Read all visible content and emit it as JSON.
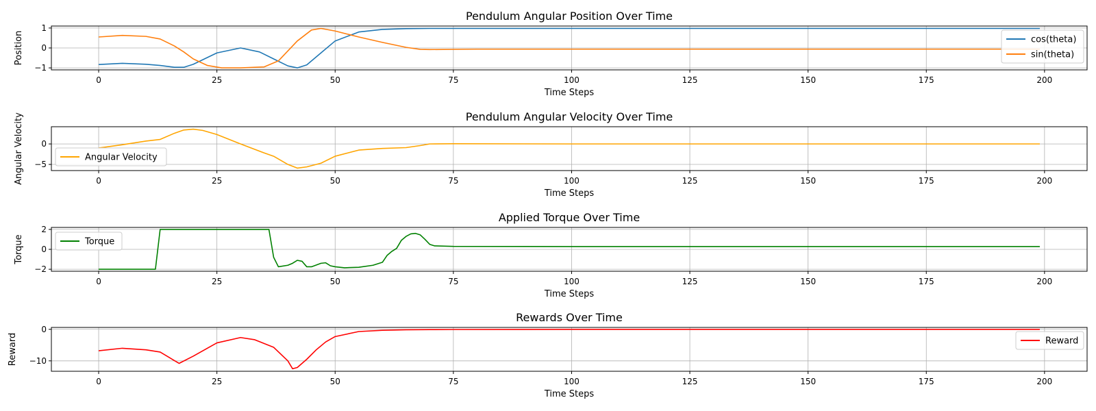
{
  "chart_data": [
    {
      "type": "line",
      "title": "Pendulum Angular Position Over Time",
      "xlabel": "Time Steps",
      "ylabel": "Position",
      "xlim": [
        -10,
        209
      ],
      "ylim": [
        -1.1,
        1.1
      ],
      "xticks": [
        0,
        25,
        50,
        75,
        100,
        125,
        150,
        175,
        200
      ],
      "yticks": [
        -1,
        0,
        1
      ],
      "grid": true,
      "legend_position": "right",
      "series": [
        {
          "name": "cos(theta)",
          "color": "#1f77b4",
          "x": [
            0,
            5,
            10,
            13,
            16,
            18,
            20,
            25,
            30,
            34,
            37,
            40,
            42,
            44,
            47,
            50,
            55,
            60,
            65,
            70,
            80,
            100,
            150,
            199
          ],
          "y": [
            -0.83,
            -0.77,
            -0.82,
            -0.88,
            -0.97,
            -0.97,
            -0.82,
            -0.25,
            0.0,
            -0.2,
            -0.55,
            -0.9,
            -1.0,
            -0.85,
            -0.25,
            0.35,
            0.8,
            0.93,
            0.97,
            0.98,
            0.98,
            0.98,
            0.98,
            0.98
          ]
        },
        {
          "name": "sin(theta)",
          "color": "#ff7f0e",
          "x": [
            0,
            5,
            10,
            13,
            16,
            18,
            20,
            23,
            26,
            30,
            35,
            38,
            42,
            45,
            47,
            50,
            55,
            60,
            65,
            68,
            70,
            80,
            100,
            150,
            199
          ],
          "y": [
            0.55,
            0.63,
            0.58,
            0.45,
            0.1,
            -0.2,
            -0.55,
            -0.88,
            -1.0,
            -1.0,
            -0.95,
            -0.65,
            0.35,
            0.9,
            0.98,
            0.85,
            0.55,
            0.28,
            0.03,
            -0.07,
            -0.08,
            -0.06,
            -0.06,
            -0.06,
            -0.06
          ]
        }
      ]
    },
    {
      "type": "line",
      "title": "Pendulum Angular Velocity Over Time",
      "xlabel": "Time Steps",
      "ylabel": "Angular Velocity",
      "xlim": [
        -10,
        209
      ],
      "ylim": [
        -6.5,
        4.2
      ],
      "xticks": [
        0,
        25,
        50,
        75,
        100,
        125,
        150,
        175,
        200
      ],
      "yticks": [
        -5,
        0
      ],
      "grid": true,
      "legend_position": "lower-left",
      "series": [
        {
          "name": "Angular Velocity",
          "color": "#ffa500",
          "x": [
            0,
            5,
            10,
            13,
            16,
            18,
            20,
            22,
            25,
            30,
            35,
            37,
            40,
            42,
            44,
            47,
            50,
            55,
            60,
            65,
            68,
            70,
            75,
            100,
            150,
            199
          ],
          "y": [
            -1.0,
            -0.2,
            0.7,
            1.1,
            2.6,
            3.4,
            3.6,
            3.3,
            2.3,
            0.0,
            -2.2,
            -3.0,
            -5.0,
            -5.9,
            -5.6,
            -4.7,
            -3.0,
            -1.5,
            -1.1,
            -0.9,
            -0.4,
            0.0,
            0.05,
            0.0,
            0.0,
            0.0
          ]
        }
      ]
    },
    {
      "type": "line",
      "title": "Applied Torque Over Time",
      "xlabel": "Time Steps",
      "ylabel": "Torque",
      "xlim": [
        -10,
        209
      ],
      "ylim": [
        -2.2,
        2.2
      ],
      "xticks": [
        0,
        25,
        50,
        75,
        100,
        125,
        150,
        175,
        200
      ],
      "yticks": [
        -2,
        0,
        2
      ],
      "grid": true,
      "legend_position": "upper-left",
      "series": [
        {
          "name": "Torque",
          "color": "#008000",
          "x": [
            0,
            12,
            13,
            36,
            37,
            38,
            40,
            41,
            42,
            43,
            44,
            45,
            47,
            48,
            49,
            50,
            52,
            55,
            58,
            60,
            61,
            62,
            63,
            64,
            65,
            66,
            67,
            68,
            69,
            70,
            71,
            75,
            100,
            150,
            199
          ],
          "y": [
            -2.0,
            -2.0,
            2.0,
            2.0,
            -0.8,
            -1.75,
            -1.6,
            -1.4,
            -1.1,
            -1.2,
            -1.75,
            -1.75,
            -1.4,
            -1.35,
            -1.65,
            -1.75,
            -1.85,
            -1.8,
            -1.6,
            -1.3,
            -0.6,
            -0.2,
            0.1,
            0.9,
            1.3,
            1.55,
            1.6,
            1.45,
            1.0,
            0.5,
            0.35,
            0.3,
            0.28,
            0.28,
            0.28
          ]
        }
      ]
    },
    {
      "type": "line",
      "title": "Rewards Over Time",
      "xlabel": "Time Steps",
      "ylabel": "Reward",
      "xlim": [
        -10,
        209
      ],
      "ylim": [
        -13.3,
        0.6
      ],
      "xticks": [
        0,
        25,
        50,
        75,
        100,
        125,
        150,
        175,
        200
      ],
      "yticks": [
        -10,
        0
      ],
      "grid": true,
      "legend_position": "right",
      "series": [
        {
          "name": "Reward",
          "color": "#ff0000",
          "x": [
            0,
            5,
            10,
            13,
            15,
            17,
            20,
            25,
            30,
            33,
            35,
            37,
            40,
            41,
            42,
            44,
            46,
            48,
            50,
            55,
            60,
            65,
            70,
            75,
            100,
            150,
            199
          ],
          "y": [
            -6.8,
            -6.0,
            -6.5,
            -7.2,
            -9.0,
            -10.8,
            -8.5,
            -4.3,
            -2.6,
            -3.3,
            -4.5,
            -5.7,
            -10.0,
            -12.5,
            -12.1,
            -9.5,
            -6.5,
            -4.0,
            -2.3,
            -0.7,
            -0.3,
            -0.15,
            -0.1,
            -0.05,
            -0.02,
            -0.02,
            -0.02
          ]
        }
      ]
    }
  ]
}
